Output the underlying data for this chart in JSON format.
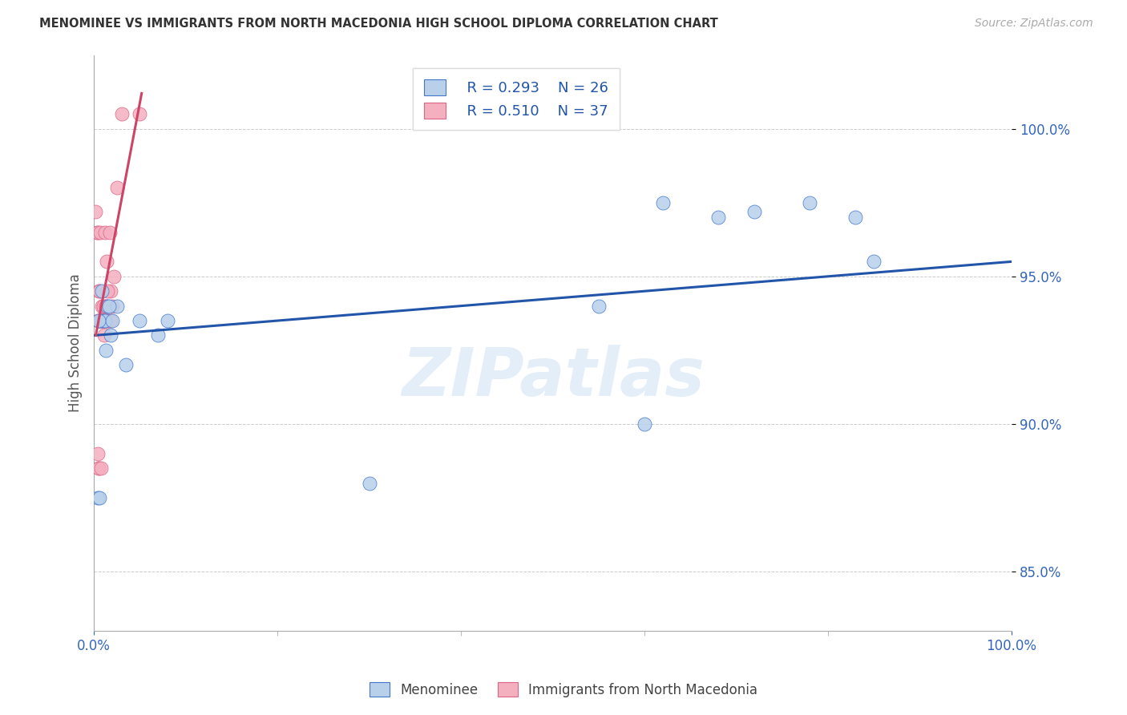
{
  "title": "MENOMINEE VS IMMIGRANTS FROM NORTH MACEDONIA HIGH SCHOOL DIPLOMA CORRELATION CHART",
  "source": "Source: ZipAtlas.com",
  "ylabel": "High School Diploma",
  "ytick_labels": [
    "85.0%",
    "90.0%",
    "95.0%",
    "100.0%"
  ],
  "ytick_values": [
    85.0,
    90.0,
    95.0,
    100.0
  ],
  "ylim": [
    83.0,
    102.5
  ],
  "xlim": [
    0.0,
    100.0
  ],
  "watermark": "ZIPatlas",
  "legend_blue_R": "R = 0.293",
  "legend_blue_N": "N = 26",
  "legend_pink_R": "R = 0.510",
  "legend_pink_N": "N = 37",
  "legend_label_blue": "Menominee",
  "legend_label_pink": "Immigrants from North Macedonia",
  "blue_color": "#b8d0ea",
  "blue_edge_color": "#4477cc",
  "blue_line_color": "#2255aa",
  "pink_color": "#f5b0c0",
  "pink_edge_color": "#dd6688",
  "pink_line_color": "#cc4466",
  "blue_x": [
    0.4,
    0.6,
    0.8,
    1.0,
    1.2,
    1.5,
    1.8,
    2.0,
    2.5,
    3.5,
    5.0,
    7.0,
    8.0,
    30.0,
    55.0,
    62.0,
    68.0,
    72.0,
    78.0,
    83.0,
    85.0,
    60.0,
    0.5,
    0.9,
    1.3,
    1.6
  ],
  "blue_y": [
    87.5,
    87.5,
    93.5,
    93.5,
    93.5,
    94.0,
    93.0,
    93.5,
    94.0,
    92.0,
    93.5,
    93.0,
    93.5,
    88.0,
    94.0,
    97.5,
    97.0,
    97.2,
    97.5,
    97.0,
    95.5,
    90.0,
    93.5,
    94.5,
    92.5,
    94.0
  ],
  "pink_x": [
    0.2,
    0.3,
    0.4,
    0.4,
    0.5,
    0.5,
    0.6,
    0.7,
    0.7,
    0.8,
    0.9,
    1.0,
    1.0,
    1.1,
    1.2,
    1.2,
    1.3,
    1.4,
    1.5,
    1.5,
    1.6,
    1.7,
    1.8,
    2.0,
    2.2,
    2.5,
    3.0,
    5.0,
    0.4,
    0.5,
    0.6,
    0.8,
    0.9,
    1.1,
    1.3,
    1.5,
    1.8
  ],
  "pink_y": [
    97.2,
    96.5,
    96.5,
    89.0,
    88.5,
    94.5,
    93.5,
    93.5,
    96.5,
    93.5,
    94.0,
    94.0,
    93.5,
    93.5,
    93.5,
    96.5,
    94.0,
    95.5,
    93.5,
    93.5,
    93.5,
    96.5,
    94.5,
    94.0,
    95.0,
    98.0,
    100.5,
    100.5,
    93.5,
    88.5,
    94.5,
    88.5,
    93.5,
    93.0,
    94.0,
    94.5,
    93.5
  ],
  "blue_trend_x0": 0.0,
  "blue_trend_y0": 93.0,
  "blue_trend_x1": 100.0,
  "blue_trend_y1": 95.5,
  "pink_trend_x0": 0.2,
  "pink_trend_y0": 93.0,
  "pink_trend_x1": 5.2,
  "pink_trend_y1": 101.2,
  "background_color": "#ffffff",
  "grid_color": "#cccccc",
  "tick_color": "#3366bb",
  "title_color": "#333333",
  "source_color": "#aaaaaa"
}
